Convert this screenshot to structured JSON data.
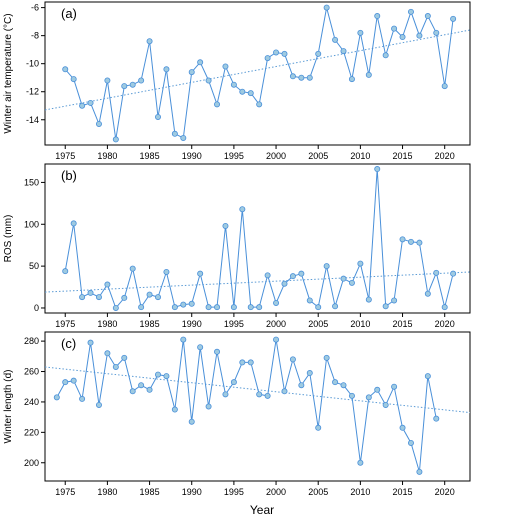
{
  "figure": {
    "xlabel": "Year",
    "x_ticks": [
      1975,
      1980,
      1985,
      1990,
      1995,
      2000,
      2005,
      2010,
      2015,
      2020
    ],
    "colors": {
      "series": "#4a90d9",
      "marker_fill": "#9ecae1",
      "trend": "#5b9bd5",
      "axes": "#000000"
    }
  },
  "chart_data": [
    {
      "type": "line",
      "panel_label": "(a)",
      "ylabel": "Winter air temperature (°C)",
      "ylim": [
        -15.8,
        -5.6
      ],
      "xlim": [
        1972.6,
        2023
      ],
      "y_ticks": [
        -14,
        -12,
        -10,
        -8,
        -6
      ],
      "grid": false,
      "x": [
        1975,
        1976,
        1977,
        1978,
        1979,
        1980,
        1981,
        1982,
        1983,
        1984,
        1985,
        1986,
        1987,
        1988,
        1989,
        1990,
        1991,
        1992,
        1993,
        1994,
        1995,
        1996,
        1997,
        1998,
        1999,
        2000,
        2001,
        2002,
        2003,
        2004,
        2005,
        2006,
        2007,
        2008,
        2009,
        2010,
        2011,
        2012,
        2013,
        2014,
        2015,
        2016,
        2017,
        2018,
        2019,
        2020,
        2021
      ],
      "values": [
        -10.4,
        -11.1,
        -13.0,
        -12.8,
        -14.3,
        -11.2,
        -15.4,
        -11.6,
        -11.5,
        -11.2,
        -8.4,
        -13.8,
        -10.4,
        -15.0,
        -15.3,
        -10.6,
        -9.9,
        -11.2,
        -12.9,
        -10.2,
        -11.5,
        -12.0,
        -12.1,
        -12.9,
        -9.6,
        -9.2,
        -9.3,
        -10.9,
        -11.0,
        -11.0,
        -9.3,
        -6.0,
        -8.3,
        -9.1,
        -11.1,
        -7.8,
        -10.8,
        -6.6,
        -9.4,
        -7.5,
        -8.1,
        -6.3,
        -8.0,
        -6.6,
        -7.8,
        -11.6,
        -6.8
      ],
      "trend": {
        "x": [
          1972.6,
          2023
        ],
        "y": [
          -13.3,
          -7.6
        ]
      }
    },
    {
      "type": "line",
      "panel_label": "(b)",
      "ylabel": "ROS (mm)",
      "ylim": [
        -6,
        172
      ],
      "xlim": [
        1972.6,
        2023
      ],
      "y_ticks": [
        0,
        50,
        100,
        150
      ],
      "grid": false,
      "x": [
        1975,
        1976,
        1977,
        1978,
        1979,
        1980,
        1981,
        1982,
        1983,
        1984,
        1985,
        1986,
        1987,
        1988,
        1989,
        1990,
        1991,
        1992,
        1993,
        1994,
        1995,
        1996,
        1997,
        1998,
        1999,
        2000,
        2001,
        2002,
        2003,
        2004,
        2005,
        2006,
        2007,
        2008,
        2009,
        2010,
        2011,
        2012,
        2013,
        2014,
        2015,
        2016,
        2017,
        2018,
        2019,
        2020,
        2021
      ],
      "values": [
        44,
        101,
        13,
        18,
        13,
        28,
        0,
        12,
        47,
        1,
        16,
        13,
        43,
        1,
        4,
        5,
        41,
        1,
        1,
        98,
        1,
        118,
        1,
        1,
        39,
        6,
        29,
        38,
        41,
        9,
        1,
        50,
        2,
        35,
        30,
        53,
        10,
        166,
        2,
        9,
        82,
        79,
        78,
        17,
        42,
        1,
        41
      ],
      "trend": {
        "x": [
          1972.6,
          2023
        ],
        "y": [
          19,
          43
        ]
      }
    },
    {
      "type": "line",
      "panel_label": "(c)",
      "ylabel": "Winter length (d)",
      "ylim": [
        188,
        286
      ],
      "xlim": [
        1972.6,
        2023
      ],
      "y_ticks": [
        200,
        220,
        240,
        260,
        280
      ],
      "grid": false,
      "x": [
        1974,
        1975,
        1976,
        1977,
        1978,
        1979,
        1980,
        1981,
        1982,
        1983,
        1984,
        1985,
        1986,
        1987,
        1988,
        1989,
        1990,
        1991,
        1992,
        1993,
        1994,
        1995,
        1996,
        1997,
        1998,
        1999,
        2000,
        2001,
        2002,
        2003,
        2004,
        2005,
        2006,
        2007,
        2008,
        2009,
        2010,
        2011,
        2012,
        2013,
        2014,
        2015,
        2016,
        2017,
        2018,
        2019
      ],
      "values": [
        243,
        253,
        254,
        242,
        279,
        238,
        272,
        263,
        269,
        247,
        251,
        248,
        258,
        257,
        235,
        281,
        227,
        276,
        237,
        273,
        245,
        253,
        266,
        266,
        245,
        244,
        281,
        247,
        268,
        251,
        259,
        223,
        269,
        253,
        251,
        244,
        200,
        243,
        248,
        238,
        250,
        223,
        213,
        194,
        257,
        229
      ],
      "trend": {
        "x": [
          1972.6,
          2023
        ],
        "y": [
          263,
          233
        ]
      }
    }
  ]
}
